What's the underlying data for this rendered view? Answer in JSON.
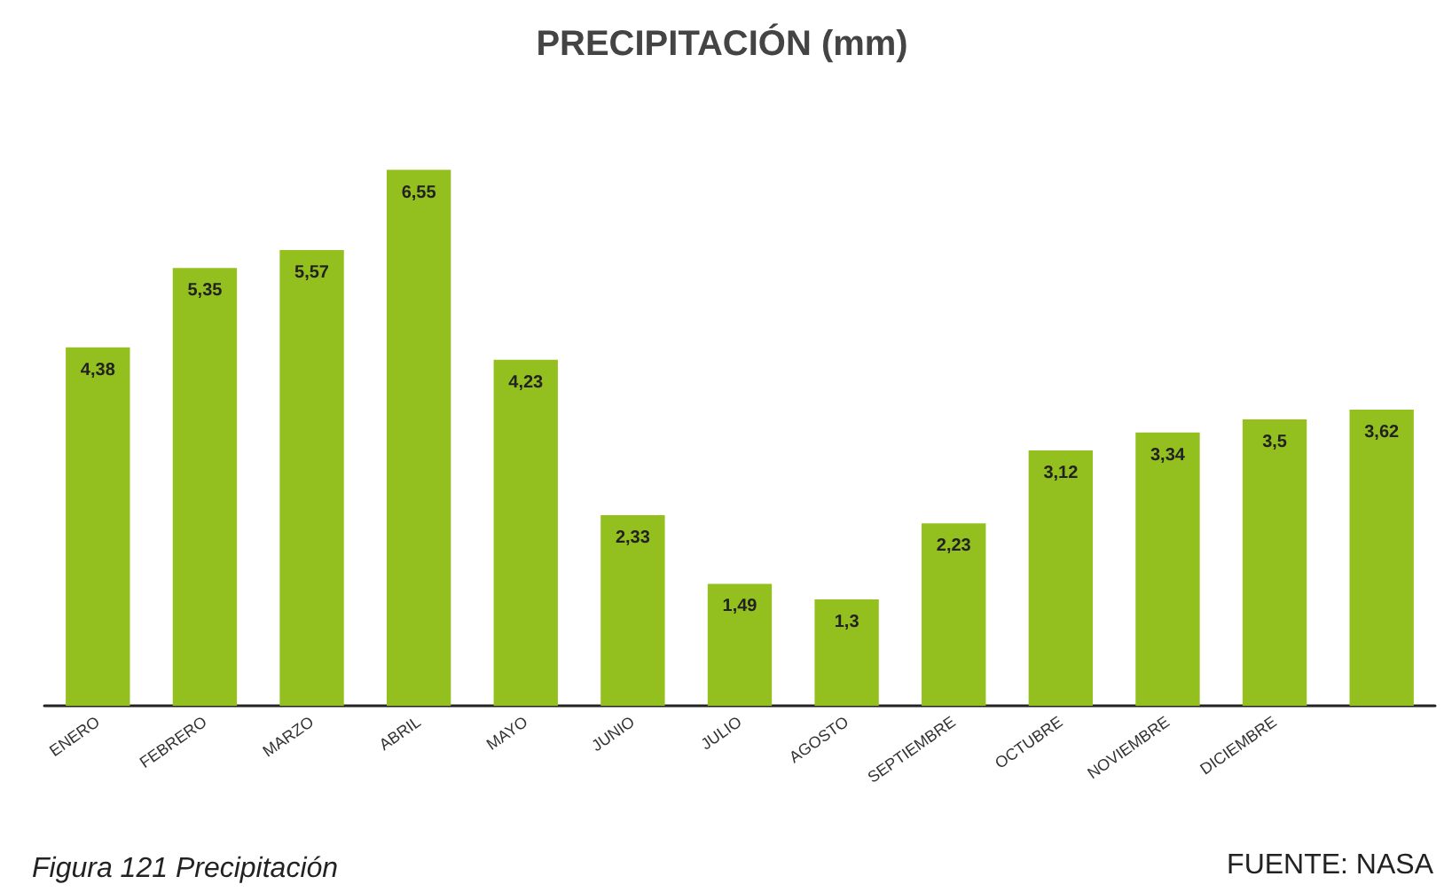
{
  "chart_data": {
    "type": "bar",
    "title": "PRECIPITACIÓN (mm)",
    "categories": [
      "ENERO",
      "FEBRERO",
      "MARZO",
      "ABRIL",
      "MAYO",
      "JUNIO",
      "JULIO",
      "AGOSTO",
      "SEPTIEMBRE",
      "OCTUBRE",
      "NOVIEMBRE",
      "DICIEMBRE",
      null
    ],
    "values": [
      4.38,
      5.35,
      5.57,
      6.55,
      4.23,
      2.33,
      1.49,
      1.3,
      2.23,
      3.12,
      3.34,
      3.5,
      3.62
    ],
    "value_labels": [
      "4,38",
      "5,35",
      "5,57",
      "6,55",
      "4,23",
      "2,33",
      "1,49",
      "1,3",
      "2,23",
      "3,12",
      "3,34",
      "3,5",
      "3,62"
    ],
    "color": "#93c01f",
    "annotations": [
      "FUENTE: NASA",
      "Figura 121 Precipitación"
    ]
  }
}
